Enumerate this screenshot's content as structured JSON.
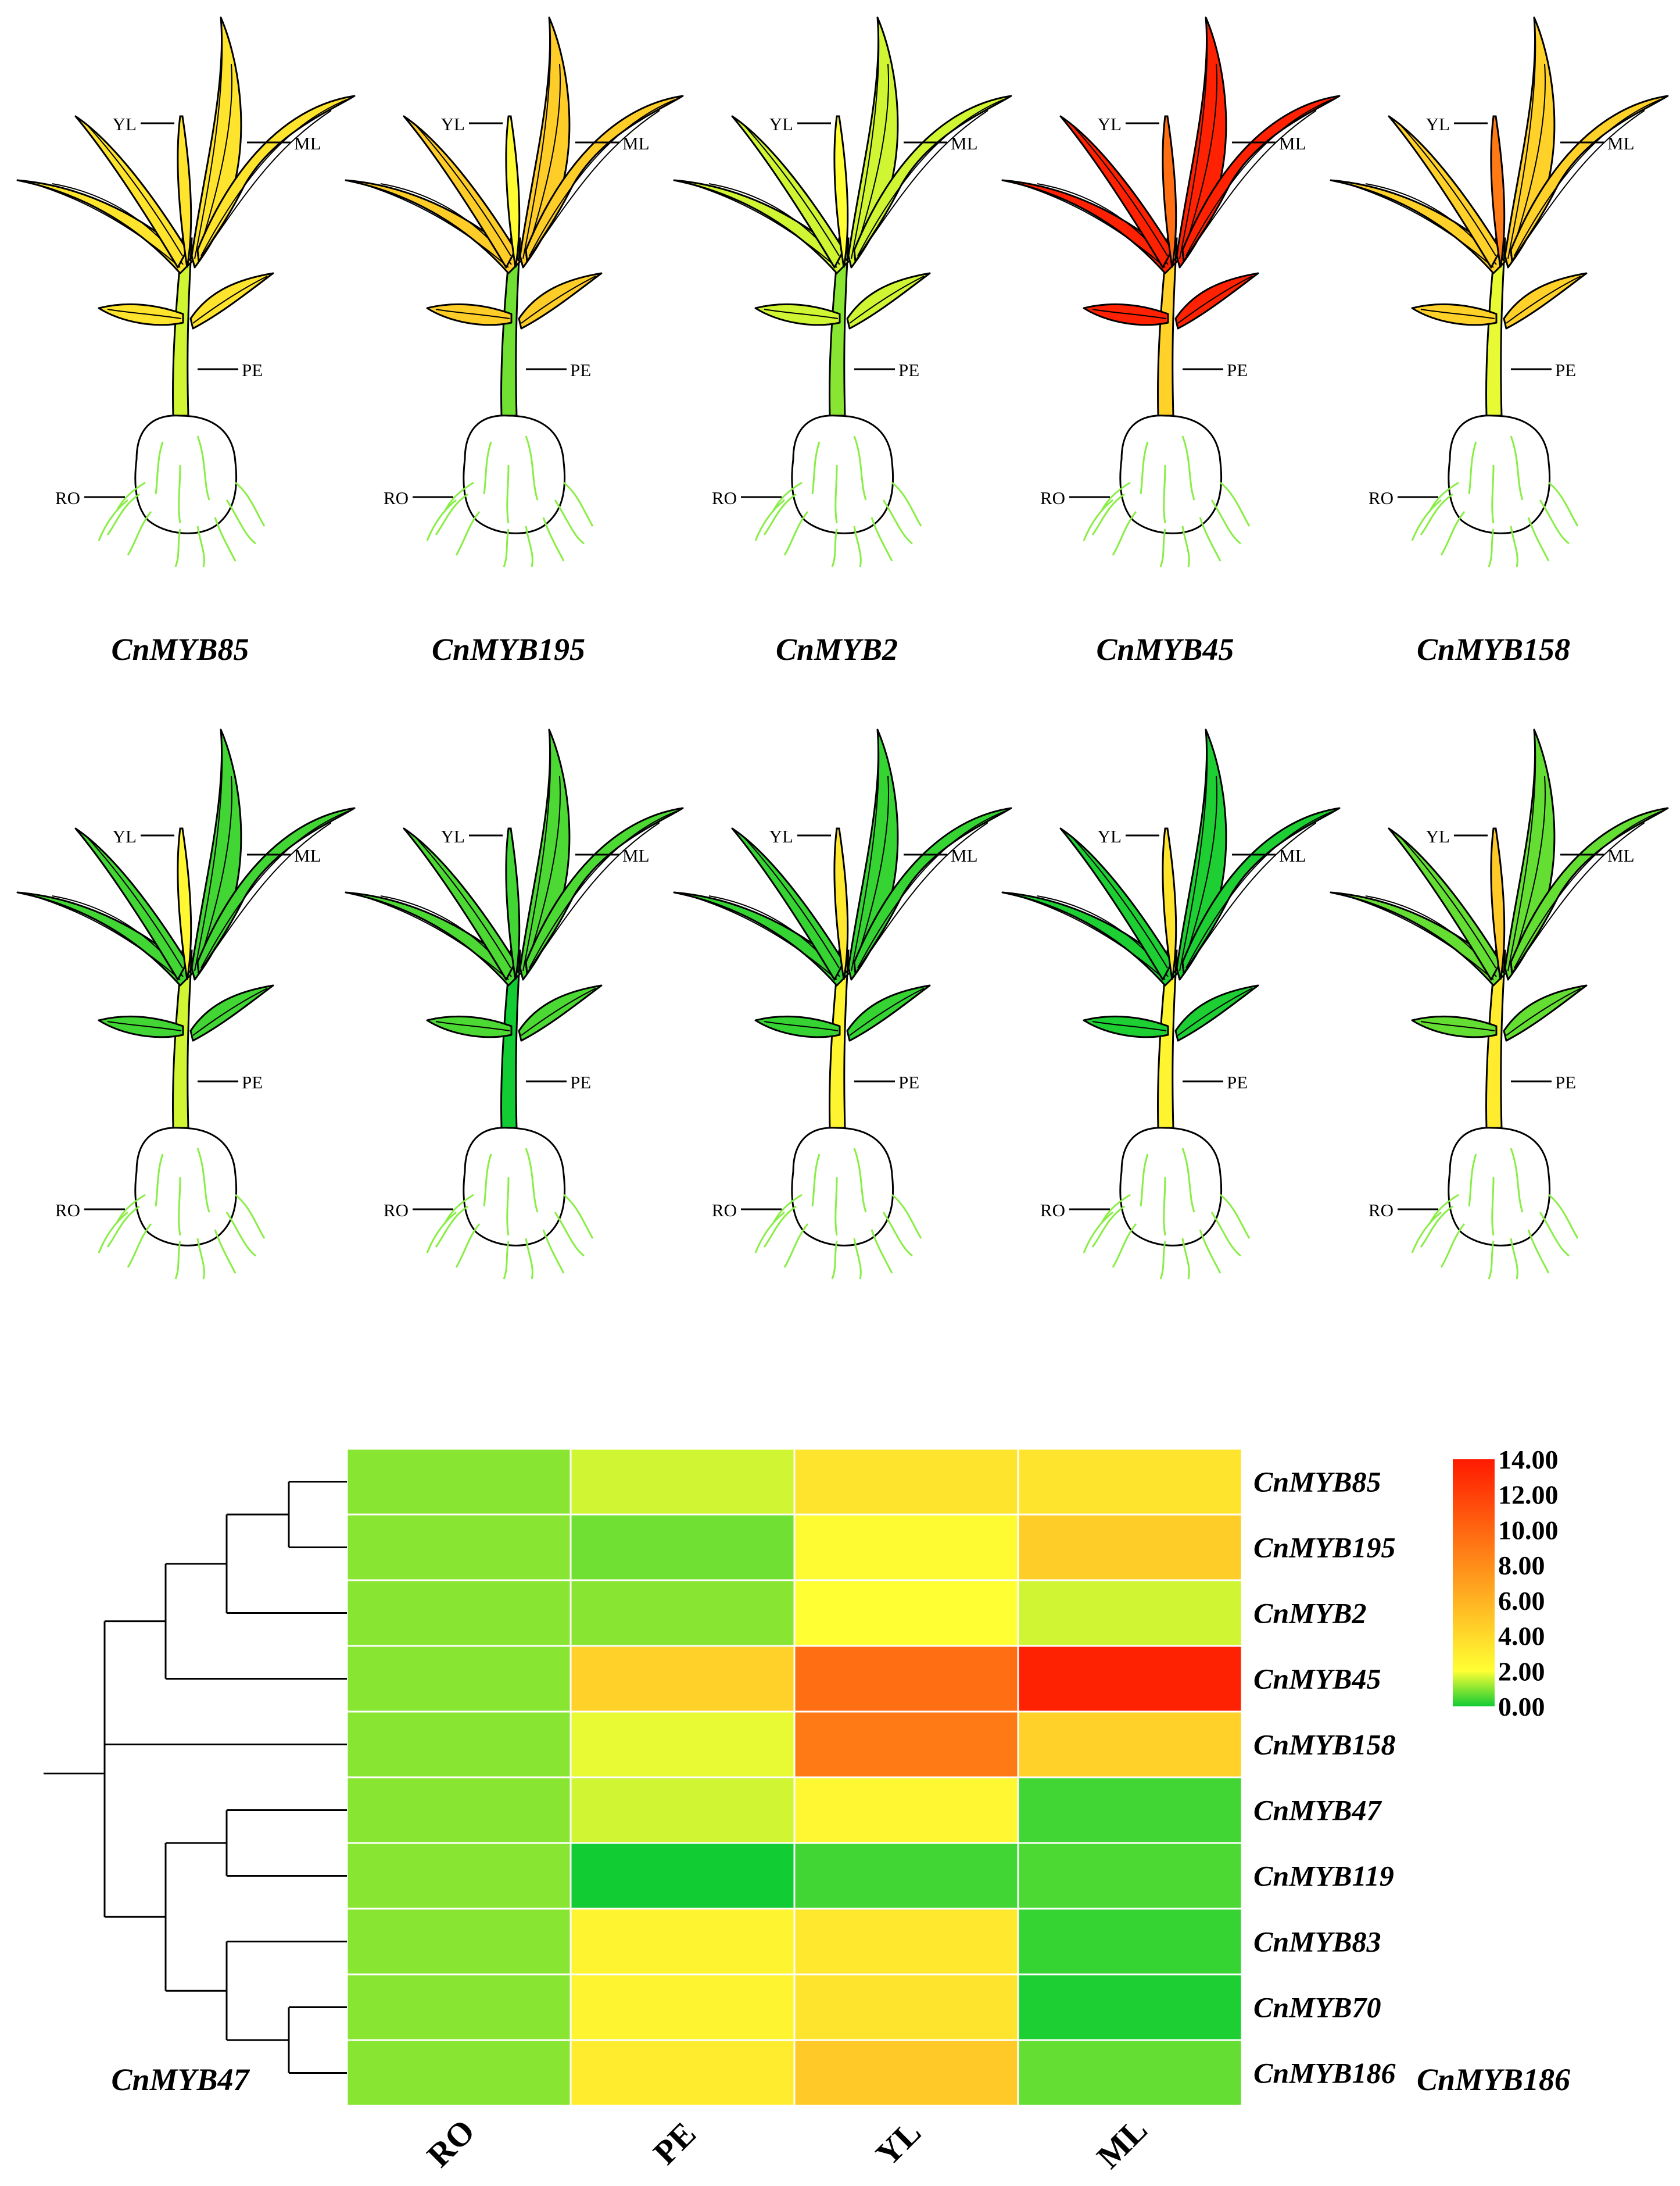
{
  "chart_data": {
    "type": "heatmap",
    "title": "",
    "tissues": [
      "RO",
      "PE",
      "YL",
      "ML"
    ],
    "tissue_labels": {
      "RO": "RO",
      "PE": "PE",
      "YL": "YL",
      "ML": "ML"
    },
    "genes": [
      "CnMYB85",
      "CnMYB195",
      "CnMYB2",
      "CnMYB45",
      "CnMYB158",
      "CnMYB47",
      "CnMYB119",
      "CnMYB83",
      "CnMYB70",
      "CnMYB186"
    ],
    "values": [
      [
        1.0,
        1.6,
        3.4,
        3.4
      ],
      [
        1.0,
        0.8,
        2.2,
        4.6
      ],
      [
        1.0,
        1.0,
        2.0,
        1.6
      ],
      [
        1.0,
        4.4,
        9.6,
        13.6
      ],
      [
        1.0,
        1.8,
        9.0,
        4.4
      ],
      [
        1.0,
        1.6,
        2.4,
        0.4
      ],
      [
        1.0,
        0.0,
        0.4,
        0.5
      ],
      [
        1.0,
        2.6,
        3.2,
        0.3
      ],
      [
        1.0,
        2.6,
        3.4,
        0.1
      ],
      [
        1.0,
        3.0,
        4.8,
        0.7
      ]
    ],
    "colorbar": {
      "min": 0,
      "max": 14,
      "tick_labels": [
        "14.00",
        "12.00",
        "10.00",
        "8.00",
        "6.00",
        "4.00",
        "2.00",
        "0.00"
      ],
      "colors": [
        "#11cc33",
        "#ffff33",
        "#ff1a00"
      ]
    },
    "dendrogram": "((((CnMYB85,CnMYB195),CnMYB2),CnMYB45),CnMYB158,((CnMYB47,CnMYB119),(CnMYB83,(CnMYB70,CnMYB186))))"
  },
  "colors": {
    "root_lines": "#88ee44",
    "outline": "#000000",
    "grid": "#ffffff"
  }
}
